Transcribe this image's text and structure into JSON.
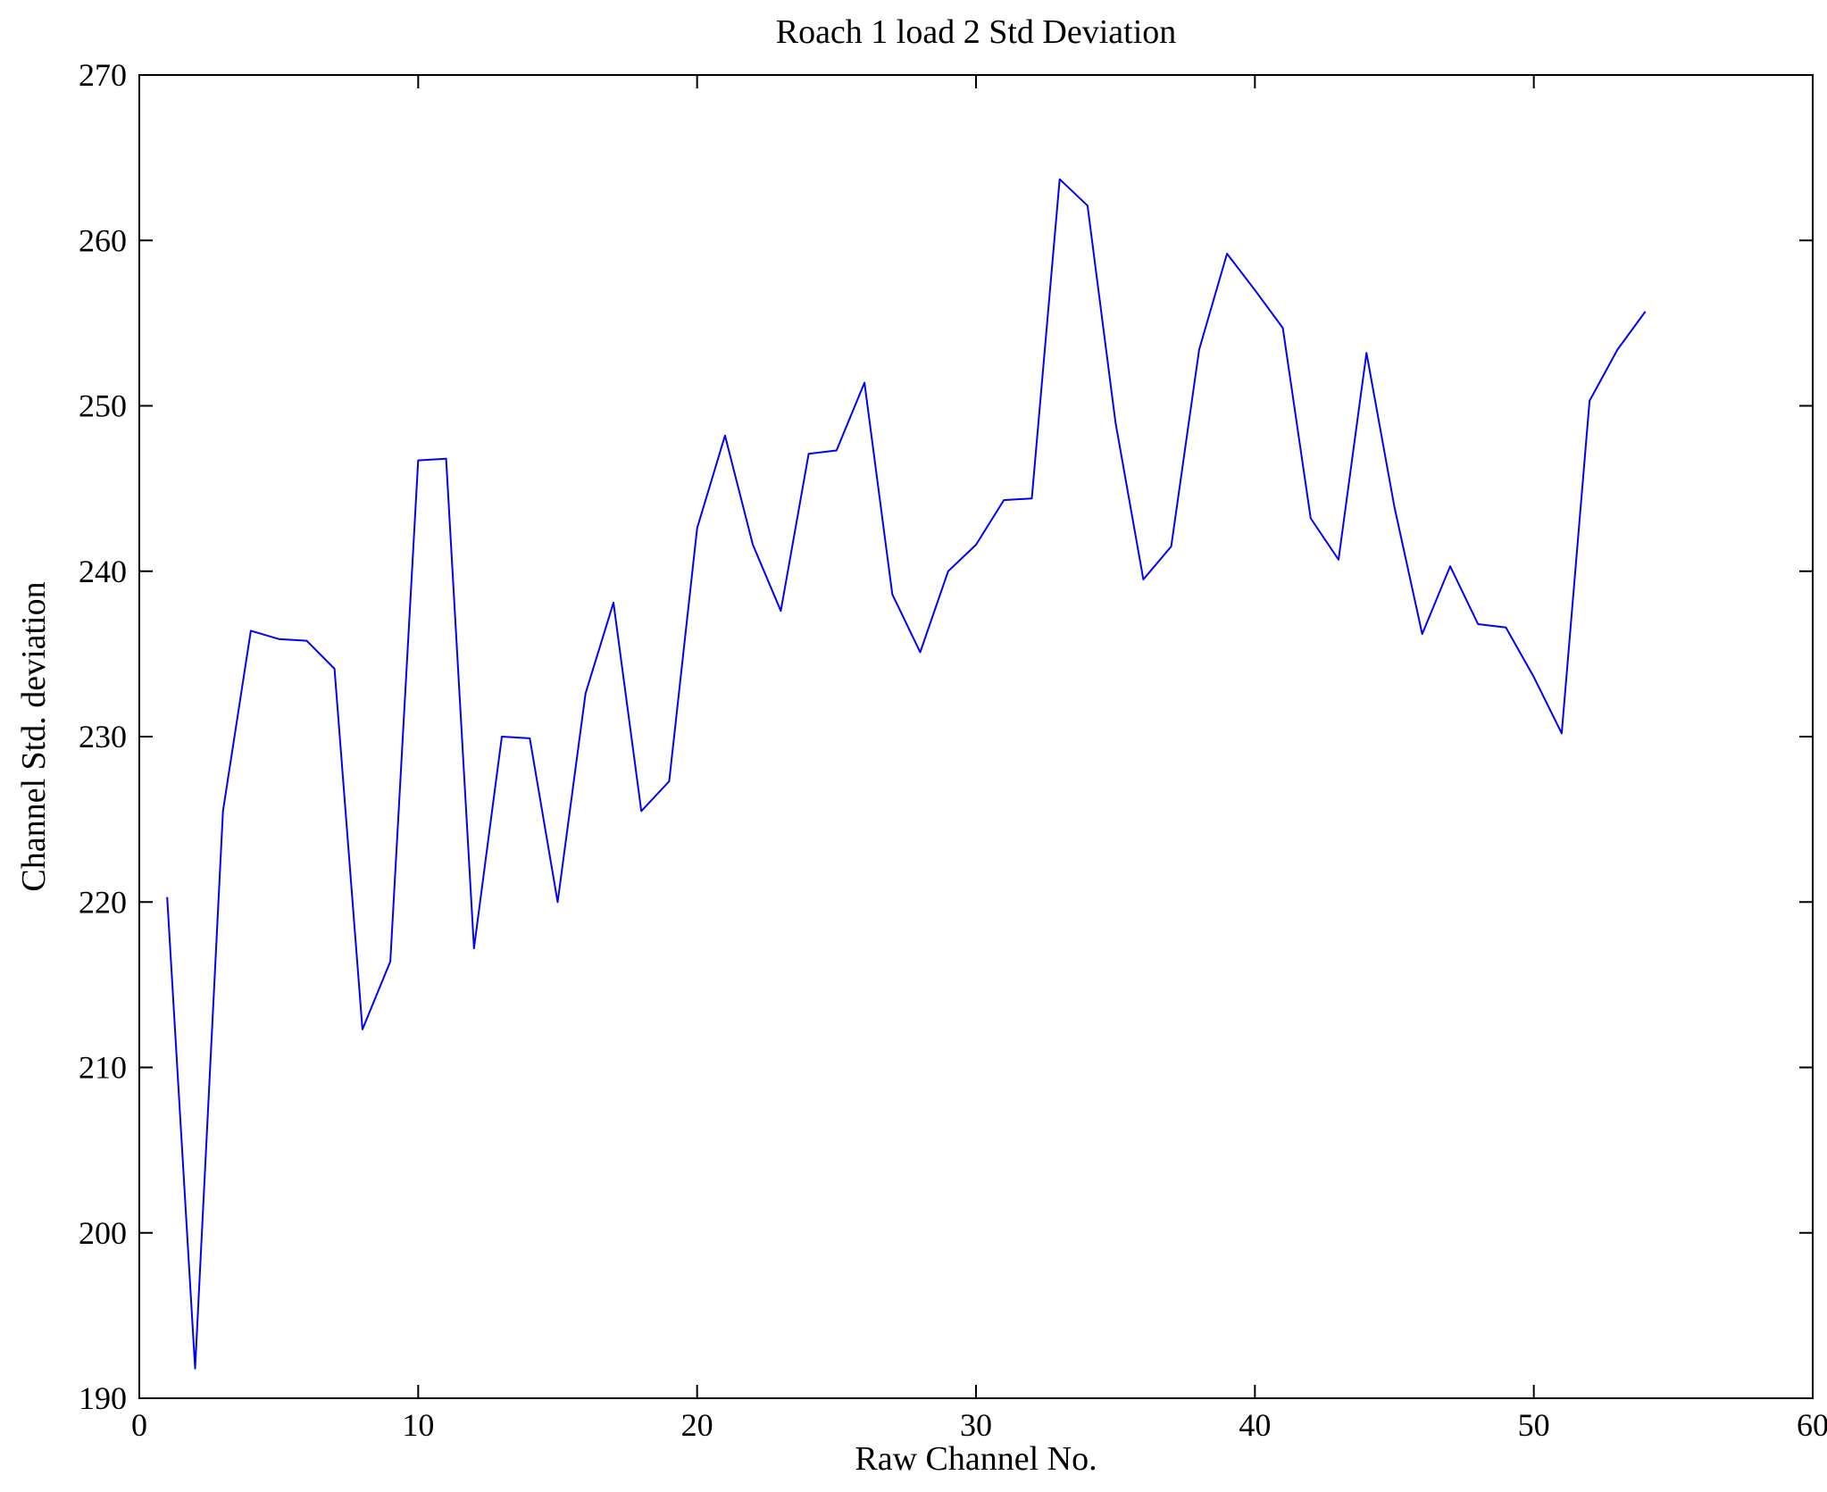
{
  "chart_data": {
    "type": "line",
    "title": "Roach 1 load 2 Std Deviation",
    "xlabel": "Raw Channel No.",
    "ylabel": "Channel Std. deviation",
    "xlim": [
      0,
      60
    ],
    "ylim": [
      190,
      270
    ],
    "xticks": [
      0,
      10,
      20,
      30,
      40,
      50,
      60
    ],
    "yticks": [
      190,
      200,
      210,
      220,
      230,
      240,
      250,
      260,
      270
    ],
    "grid": false,
    "legend": null,
    "line_color": "#0000FF",
    "axes_color": "#000000",
    "x": [
      1,
      2,
      3,
      4,
      5,
      6,
      7,
      8,
      9,
      10,
      11,
      12,
      13,
      14,
      15,
      16,
      17,
      18,
      19,
      20,
      21,
      22,
      23,
      24,
      25,
      26,
      27,
      28,
      29,
      30,
      31,
      32,
      33,
      34,
      35,
      36,
      37,
      38,
      39,
      40,
      41,
      42,
      43,
      44,
      45,
      46,
      47,
      48,
      49,
      50,
      51,
      52,
      53,
      54
    ],
    "series": [
      {
        "name": "Channel Std. deviation",
        "values": [
          220.3,
          191.8,
          225.5,
          236.4,
          235.9,
          235.8,
          234.1,
          212.3,
          216.4,
          246.7,
          246.8,
          217.2,
          230.0,
          229.9,
          220.0,
          232.6,
          238.1,
          225.5,
          227.3,
          242.6,
          248.2,
          241.6,
          237.6,
          247.1,
          247.3,
          251.4,
          238.6,
          235.1,
          240.0,
          241.6,
          244.3,
          244.4,
          263.7,
          262.1,
          249.0,
          239.5,
          241.5,
          253.4,
          259.2,
          257.0,
          254.7,
          243.2,
          240.7,
          253.2,
          243.9,
          236.2,
          240.3,
          236.8,
          236.6,
          233.6,
          230.2,
          250.3,
          253.4,
          255.7
        ]
      }
    ]
  }
}
